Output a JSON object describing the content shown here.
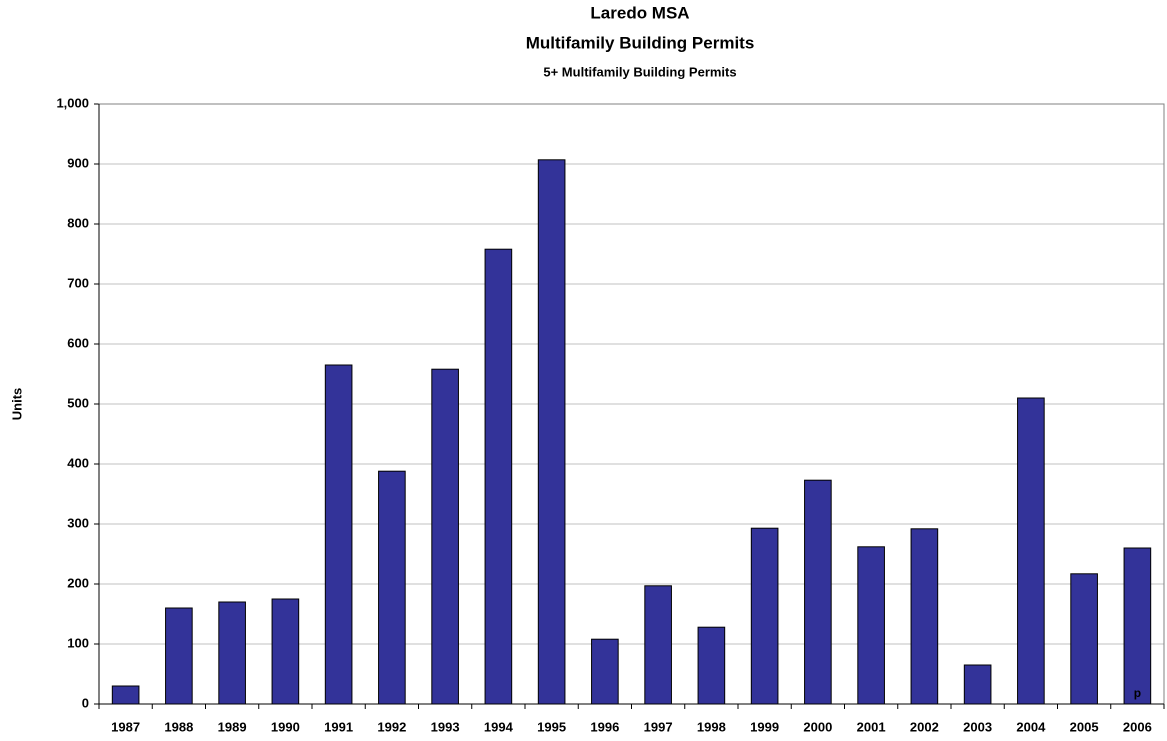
{
  "chart_data": {
    "type": "bar",
    "title": "Laredo MSA",
    "subtitle": "Multifamily Building Permits",
    "subtitle2": "5+ Multifamily Building Permits",
    "y_label": "Units",
    "annotation": "p",
    "categories": [
      "1987",
      "1988",
      "1989",
      "1990",
      "1991",
      "1992",
      "1993",
      "1994",
      "1995",
      "1996",
      "1997",
      "1998",
      "1999",
      "2000",
      "2001",
      "2002",
      "2003",
      "2004",
      "2005",
      "2006"
    ],
    "values": [
      30,
      160,
      170,
      175,
      565,
      388,
      558,
      758,
      907,
      108,
      197,
      128,
      293,
      373,
      262,
      292,
      65,
      510,
      217,
      260
    ],
    "color": "#333399",
    "ylim": [
      0,
      1000
    ],
    "yticks": [
      0,
      100,
      200,
      300,
      400,
      500,
      600,
      700,
      800,
      900,
      {
        "value": 1000,
        "label": "1,000"
      }
    ],
    "grid": true
  }
}
